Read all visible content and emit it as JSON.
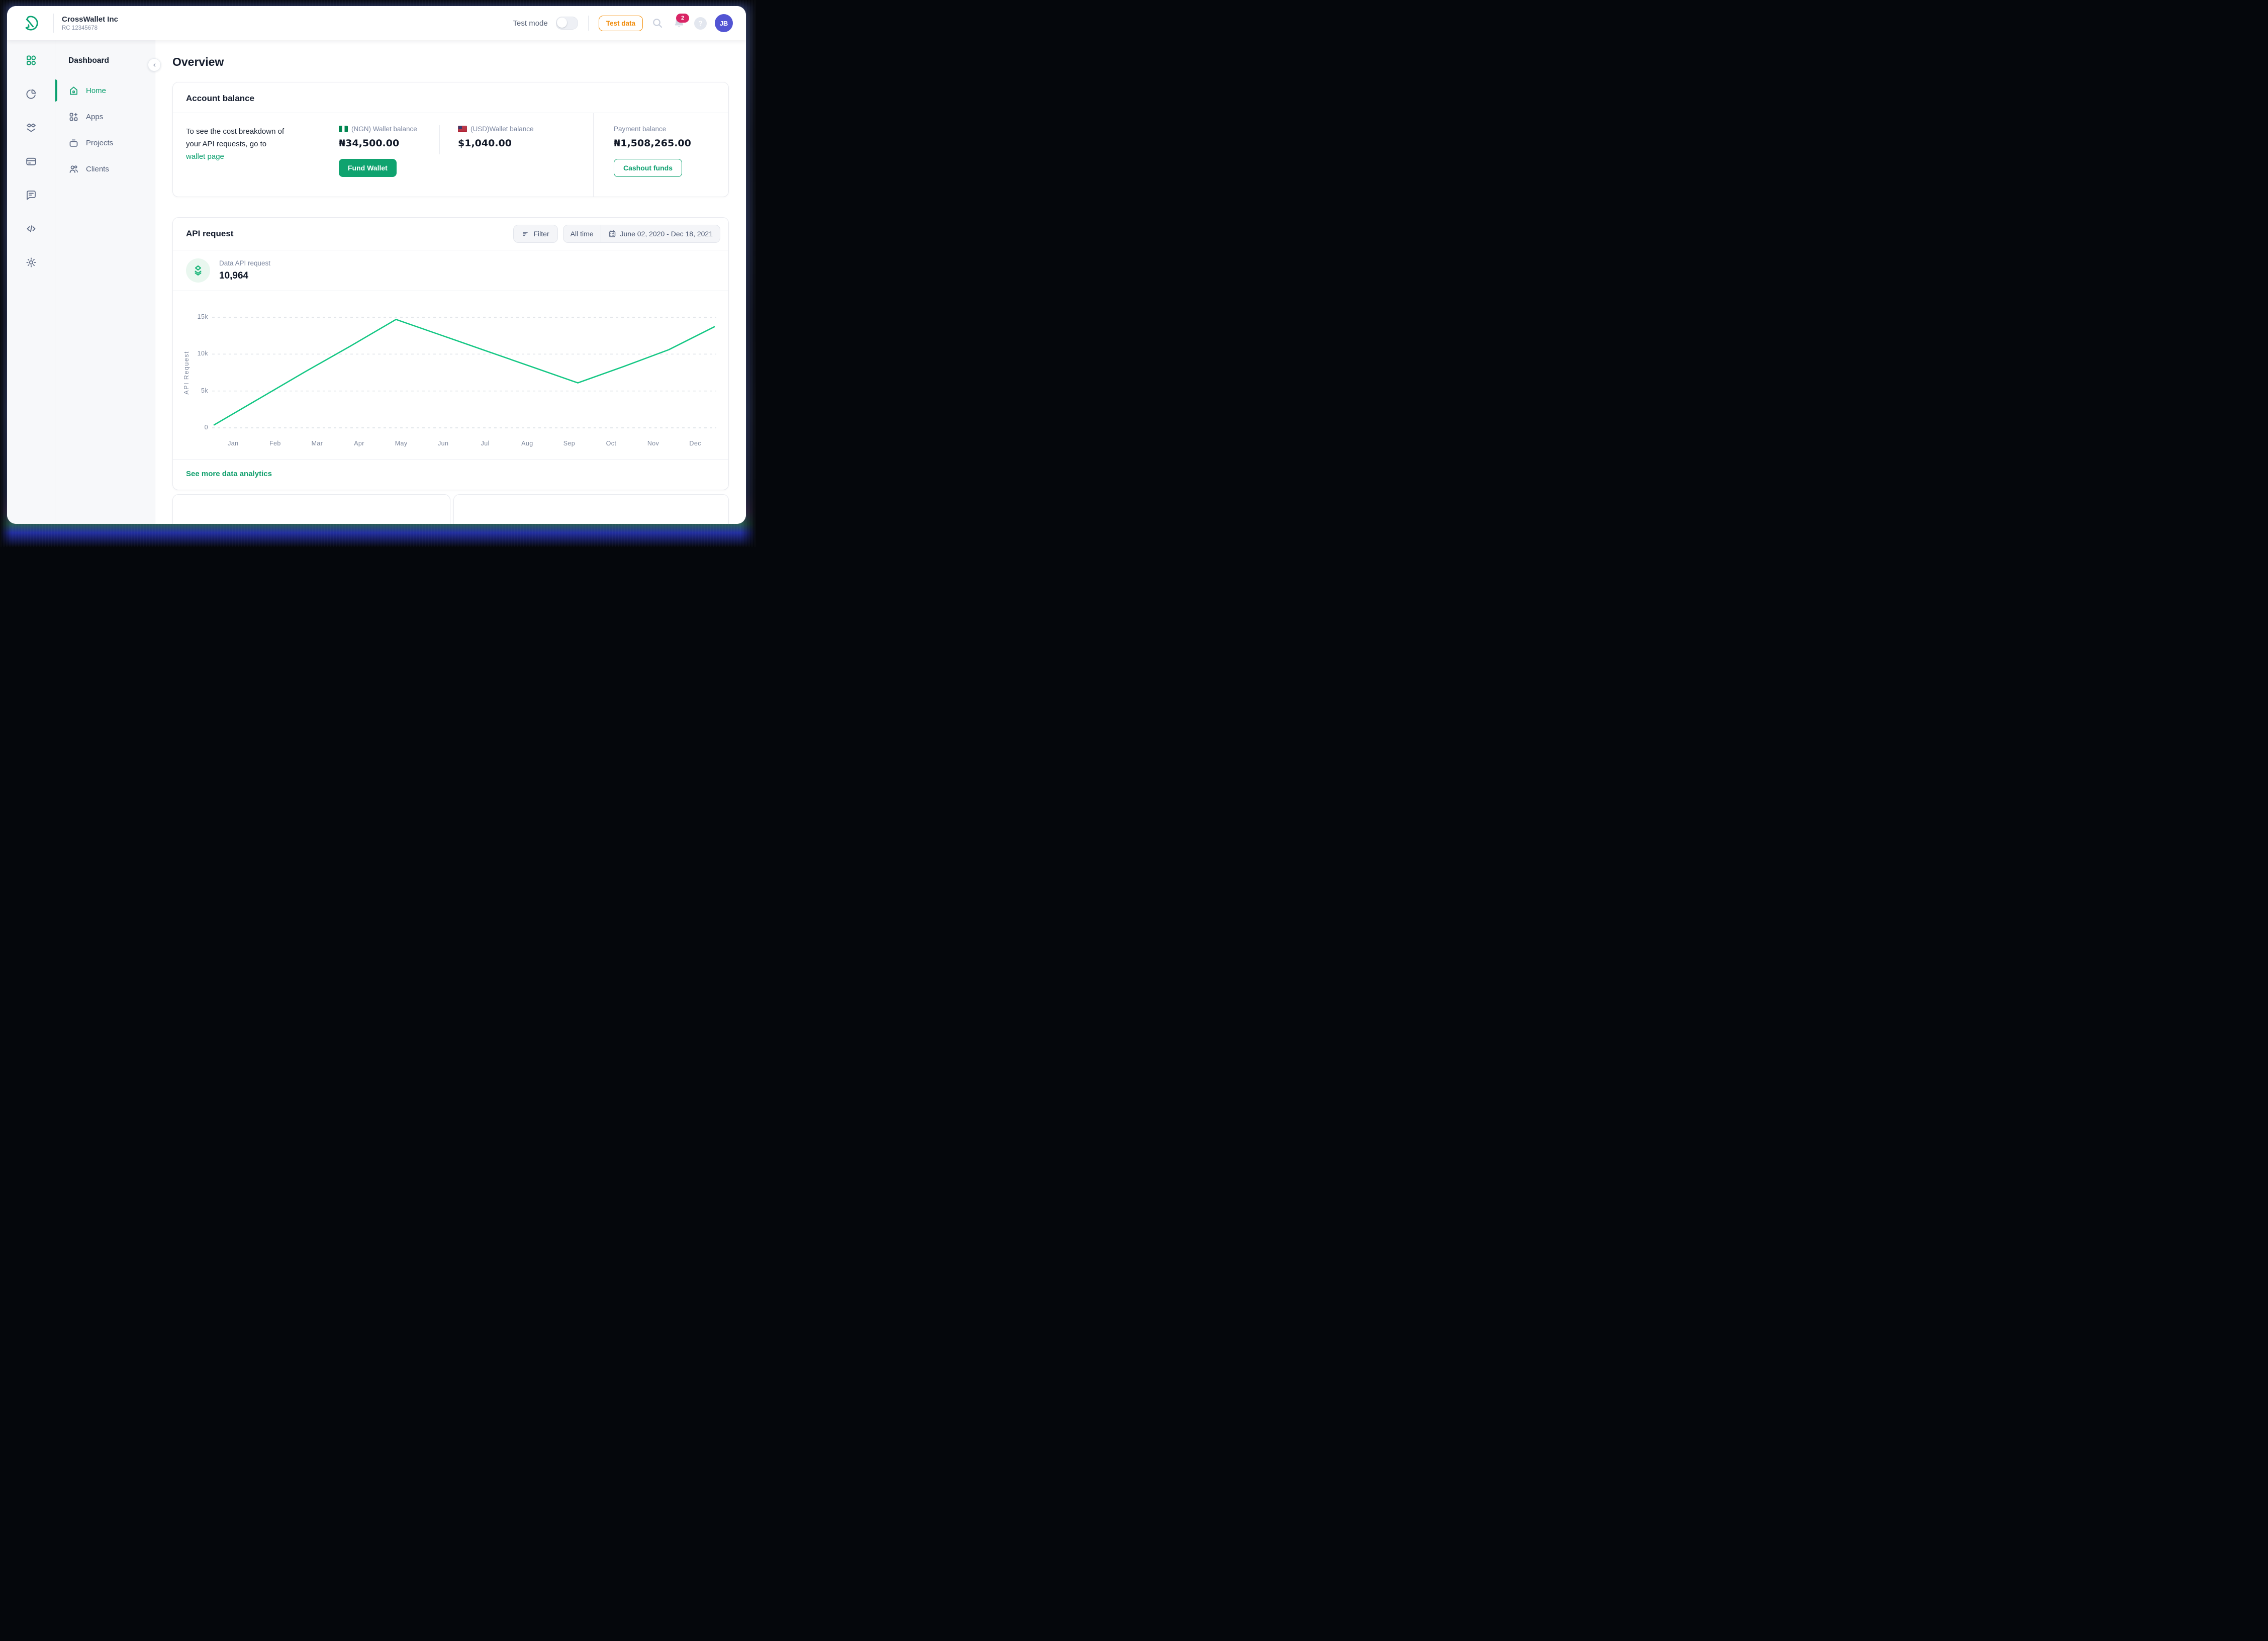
{
  "header": {
    "company": {
      "name": "CrossWallet Inc",
      "rc": "RC 12345678"
    },
    "test_mode_label": "Test mode",
    "test_data_label": "Test data",
    "notification_count": "2",
    "help_glyph": "?",
    "avatar_initials": "JB"
  },
  "sidebar": {
    "section_label": "Dashboard",
    "items": [
      {
        "label": "Home",
        "active": true
      },
      {
        "label": "Apps",
        "active": false
      },
      {
        "label": "Projects",
        "active": false
      },
      {
        "label": "Clients",
        "active": false
      }
    ]
  },
  "page": {
    "title": "Overview"
  },
  "account_balance": {
    "title": "Account balance",
    "desc_line1": "To see the cost breakdown of",
    "desc_line2": "your API requests, go to",
    "link_label": "wallet page",
    "ngn": {
      "label": "(NGN) Wallet balance",
      "value": "₦34,500.00",
      "button_label": "Fund Wallet"
    },
    "usd": {
      "label": "(USD)Wallet balance",
      "value": "$1,040.00"
    },
    "payment": {
      "label": "Payment balance",
      "value": "₦1,508,265.00",
      "button_label": "Cashout funds"
    }
  },
  "api_request": {
    "title": "API request",
    "filter_label": "Filter",
    "all_time_label": "All time",
    "date_range": "June 02, 2020 - Dec 18, 2021",
    "stat": {
      "label": "Data API request",
      "value": "10,964"
    },
    "see_more_label": "See more data analytics"
  },
  "chart_data": {
    "type": "line",
    "title": "",
    "xlabel": "",
    "ylabel": "API Request",
    "x": [
      "Jan",
      "Feb",
      "Mar",
      "Apr",
      "May",
      "Jun",
      "Jul",
      "Aug",
      "Sep",
      "Oct",
      "Nov",
      "Dec"
    ],
    "series": [
      {
        "name": "API Request",
        "values": [
          400,
          4000,
          7600,
          11100,
          14700,
          12550,
          10400,
          8250,
          6100,
          8300,
          10600,
          13700
        ]
      }
    ],
    "ylim": [
      0,
      15000
    ],
    "ytick_values": [
      0,
      5000,
      10000,
      15000
    ],
    "ytick_labels": [
      "0",
      "5k",
      "10k",
      "15k"
    ],
    "grid": "dashed-horizontal",
    "legend": "none",
    "line_color": "#15c784"
  },
  "colors": {
    "accent_green": "#0aa06e",
    "chart_line": "#15c784",
    "orange": "#f08c0c",
    "badge_red": "#d92565",
    "avatar_purple": "#5254d3"
  }
}
